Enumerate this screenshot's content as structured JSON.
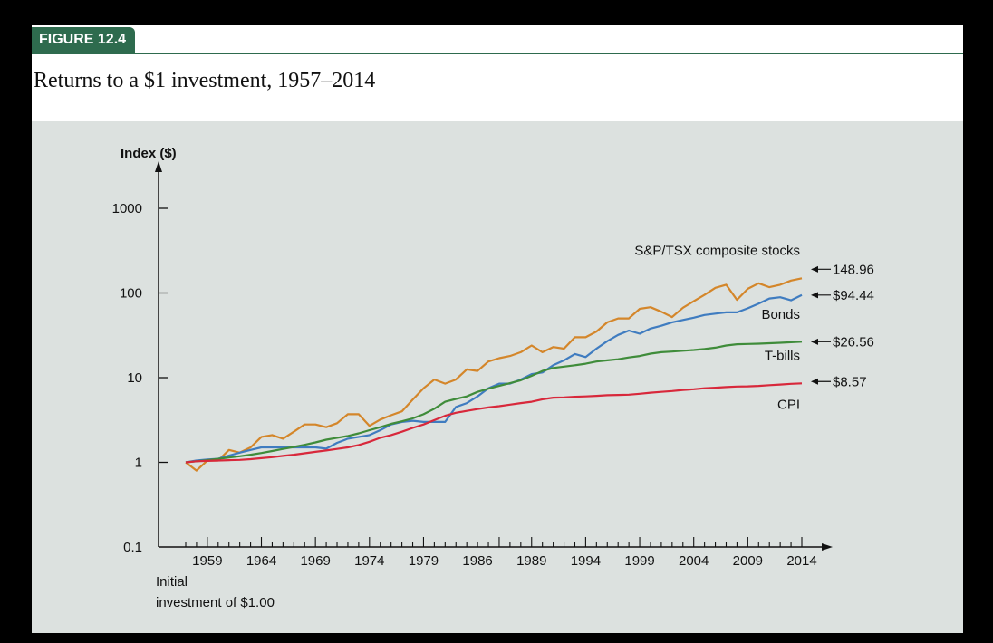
{
  "figure": {
    "tag": "FIGURE 12.4",
    "title": "Returns to a $1 investment, 1957–2014"
  },
  "colors": {
    "accent": "#2e6b4e",
    "panel_bg": "#dce1df",
    "stocks": "#d4862a",
    "bonds": "#3f7cc0",
    "tbills": "#3f8c3a",
    "cpi": "#d8283b"
  },
  "chart_data": {
    "type": "line",
    "title": "Returns to a $1 investment, 1957–2014",
    "ylabel": "Index ($)",
    "xlabel": "",
    "y_scale": "log",
    "ylim": [
      0.1,
      1000
    ],
    "y_ticks": [
      {
        "value": 1000,
        "label": "1000"
      },
      {
        "value": 100,
        "label": "100"
      },
      {
        "value": 10,
        "label": "10"
      },
      {
        "value": 1,
        "label": "1"
      },
      {
        "value": 0.1,
        "label": "0.1"
      }
    ],
    "xlim": [
      1957,
      2014
    ],
    "x_ticks": [
      "1959",
      "1964",
      "1969",
      "1974",
      "1979",
      "1986",
      "1989",
      "1994",
      "1999",
      "2004",
      "2009",
      "2014"
    ],
    "x_origin_note": "Initial investment of $1.00",
    "grid": false,
    "series": [
      {
        "name": "S&P/TSX composite stocks",
        "color": "#d4862a",
        "end_label": "148.96",
        "x": [
          1957,
          1958,
          1959,
          1960,
          1961,
          1962,
          1963,
          1964,
          1965,
          1966,
          1967,
          1968,
          1969,
          1970,
          1971,
          1972,
          1973,
          1974,
          1975,
          1976,
          1977,
          1978,
          1979,
          1980,
          1981,
          1982,
          1983,
          1984,
          1985,
          1986,
          1987,
          1988,
          1989,
          1990,
          1991,
          1992,
          1993,
          1994,
          1995,
          1996,
          1997,
          1998,
          1999,
          2000,
          2001,
          2002,
          2003,
          2004,
          2005,
          2006,
          2007,
          2008,
          2009,
          2010,
          2011,
          2012,
          2013,
          2014
        ],
        "values": [
          1.0,
          0.8,
          1.05,
          1.05,
          1.4,
          1.3,
          1.5,
          2.0,
          2.1,
          1.9,
          2.3,
          2.8,
          2.8,
          2.6,
          2.9,
          3.7,
          3.7,
          2.7,
          3.2,
          3.6,
          4.0,
          5.5,
          7.5,
          9.5,
          8.5,
          9.5,
          12.5,
          12.0,
          15.5,
          17.0,
          18.0,
          20.0,
          24.0,
          20.0,
          23.0,
          22.0,
          30.0,
          30.0,
          35.0,
          45.0,
          50.0,
          50.0,
          65.0,
          68.0,
          60.0,
          52.0,
          67.0,
          80.0,
          95.0,
          115.0,
          125.0,
          83.0,
          112.0,
          130.0,
          117.0,
          125.0,
          140.0,
          148.96
        ]
      },
      {
        "name": "Bonds",
        "color": "#3f7cc0",
        "end_label": "$94.44",
        "x": [
          1957,
          1958,
          1959,
          1960,
          1961,
          1962,
          1963,
          1964,
          1965,
          1966,
          1967,
          1968,
          1969,
          1970,
          1971,
          1972,
          1973,
          1974,
          1975,
          1976,
          1977,
          1978,
          1979,
          1980,
          1981,
          1982,
          1983,
          1984,
          1985,
          1986,
          1987,
          1988,
          1989,
          1990,
          1991,
          1992,
          1993,
          1994,
          1995,
          1996,
          1997,
          1998,
          1999,
          2000,
          2001,
          2002,
          2003,
          2004,
          2005,
          2006,
          2007,
          2008,
          2009,
          2010,
          2011,
          2012,
          2013,
          2014
        ],
        "values": [
          1.0,
          1.05,
          1.08,
          1.1,
          1.2,
          1.3,
          1.4,
          1.5,
          1.5,
          1.5,
          1.5,
          1.5,
          1.5,
          1.45,
          1.7,
          1.9,
          2.0,
          2.1,
          2.4,
          2.8,
          3.0,
          3.1,
          3.0,
          3.0,
          3.0,
          4.5,
          5.0,
          6.0,
          7.5,
          8.5,
          8.5,
          9.5,
          11.0,
          11.5,
          14.0,
          16.0,
          19.0,
          17.5,
          22.0,
          27.0,
          32.0,
          36.0,
          33.0,
          38.0,
          41.0,
          45.0,
          48.0,
          51.0,
          55.0,
          57.0,
          59.0,
          59.0,
          66.0,
          75.0,
          86.0,
          89.0,
          82.0,
          94.44
        ]
      },
      {
        "name": "T-bills",
        "color": "#3f8c3a",
        "end_label": "$26.56",
        "x": [
          1957,
          1958,
          1959,
          1960,
          1961,
          1962,
          1963,
          1964,
          1965,
          1966,
          1967,
          1968,
          1969,
          1970,
          1971,
          1972,
          1973,
          1974,
          1975,
          1976,
          1977,
          1978,
          1979,
          1980,
          1981,
          1982,
          1983,
          1984,
          1985,
          1986,
          1987,
          1988,
          1989,
          1990,
          1991,
          1992,
          1993,
          1994,
          1995,
          1996,
          1997,
          1998,
          1999,
          2000,
          2001,
          2002,
          2003,
          2004,
          2005,
          2006,
          2007,
          2008,
          2009,
          2010,
          2011,
          2012,
          2013,
          2014
        ],
        "values": [
          1.0,
          1.03,
          1.06,
          1.1,
          1.14,
          1.18,
          1.23,
          1.29,
          1.36,
          1.44,
          1.52,
          1.61,
          1.72,
          1.85,
          1.95,
          2.05,
          2.2,
          2.4,
          2.6,
          2.85,
          3.05,
          3.3,
          3.7,
          4.3,
          5.2,
          5.6,
          6.0,
          6.8,
          7.4,
          8.0,
          8.6,
          9.3,
          10.5,
          12.0,
          13.0,
          13.5,
          14.0,
          14.6,
          15.5,
          16.0,
          16.5,
          17.3,
          18.0,
          19.2,
          20.0,
          20.3,
          20.8,
          21.2,
          21.8,
          22.6,
          24.0,
          24.8,
          25.0,
          25.2,
          25.5,
          25.8,
          26.2,
          26.56
        ]
      },
      {
        "name": "CPI",
        "color": "#d8283b",
        "end_label": "$8.57",
        "x": [
          1957,
          1958,
          1959,
          1960,
          1961,
          1962,
          1963,
          1964,
          1965,
          1966,
          1967,
          1968,
          1969,
          1970,
          1971,
          1972,
          1973,
          1974,
          1975,
          1976,
          1977,
          1978,
          1979,
          1980,
          1981,
          1982,
          1983,
          1984,
          1985,
          1986,
          1987,
          1988,
          1989,
          1990,
          1991,
          1992,
          1993,
          1994,
          1995,
          1996,
          1997,
          1998,
          1999,
          2000,
          2001,
          2002,
          2003,
          2004,
          2005,
          2006,
          2007,
          2008,
          2009,
          2010,
          2011,
          2012,
          2013,
          2014
        ],
        "values": [
          1.0,
          1.03,
          1.04,
          1.05,
          1.06,
          1.07,
          1.09,
          1.12,
          1.15,
          1.19,
          1.23,
          1.28,
          1.33,
          1.38,
          1.44,
          1.5,
          1.6,
          1.75,
          1.95,
          2.1,
          2.3,
          2.55,
          2.8,
          3.15,
          3.55,
          3.85,
          4.05,
          4.25,
          4.45,
          4.6,
          4.8,
          5.0,
          5.2,
          5.55,
          5.8,
          5.85,
          5.95,
          6.0,
          6.1,
          6.2,
          6.25,
          6.3,
          6.45,
          6.65,
          6.8,
          6.95,
          7.15,
          7.3,
          7.5,
          7.6,
          7.75,
          7.85,
          7.9,
          8.0,
          8.15,
          8.3,
          8.45,
          8.57
        ]
      }
    ]
  }
}
